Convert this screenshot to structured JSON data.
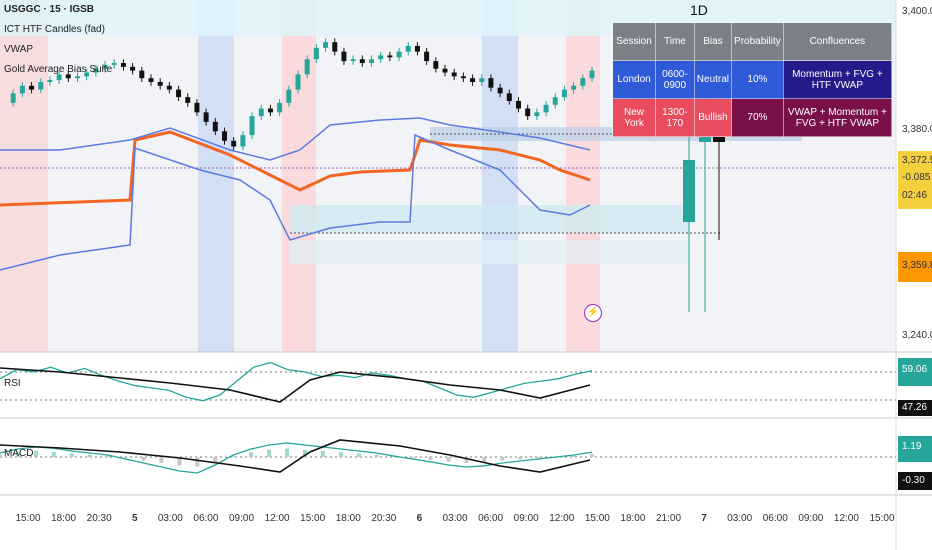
{
  "header": {
    "symbol": "USGGC · 15 · IGSB",
    "indicator_1": "ICT HTF Candles (fad)",
    "indicator_2": "VWAP",
    "indicator_3": "Gold Average Bias Suite",
    "htf_label": "1D"
  },
  "price_axis": {
    "ticks": [
      "3,400.00",
      "3,380.00",
      "3,240.00"
    ],
    "current_price": "3,372.55",
    "change": "-0.085",
    "countdown": "02:46",
    "level_tag": "3,359.80"
  },
  "rsi_pane": {
    "label": "RSI",
    "value_1": "59.06",
    "value_2": "47.26"
  },
  "macd_pane": {
    "label": "MACD",
    "value_1": "1.19",
    "value_2": "-0.30"
  },
  "time_axis": {
    "ticks": [
      "15:00",
      "18:00",
      "20:30",
      "5",
      "03:00",
      "06:00",
      "09:00",
      "12:00",
      "15:00",
      "18:00",
      "20:30",
      "6",
      "03:00",
      "06:00",
      "09:00",
      "12:00",
      "15:00",
      "18:00",
      "21:00",
      "7",
      "03:00",
      "06:00",
      "09:00",
      "12:00",
      "15:00"
    ]
  },
  "session_table": {
    "headers": [
      "Session",
      "Time",
      "Bias",
      "Probability",
      "Confluences"
    ],
    "rows": [
      {
        "session": "London",
        "time": "0600-0900",
        "bias": "Neutral",
        "probability": "10%",
        "confluences": "Momentum + FVG + HTF VWAP"
      },
      {
        "session": "New York",
        "time": "1300-170",
        "bias": "Bullish",
        "probability": "70%",
        "confluences": "VWAP + Momentum + FVG + HTF VWAP"
      }
    ]
  },
  "colors": {
    "up": "#26a69a",
    "down": "#111111",
    "ema": "#f26522",
    "vwap": "#5b7be0",
    "london_row": "#2f5bd8",
    "ny_row_session": "#e84c5e",
    "ny_row": "#7a1048",
    "header_row": "#7b8088",
    "confl_london": "#241b8a"
  },
  "chart_data": {
    "type": "candlestick",
    "series": [
      {
        "name": "price",
        "values": [
          3355,
          3360,
          3364,
          3362,
          3366,
          3367,
          3370,
          3368,
          3369,
          3371,
          3373,
          3375,
          3376,
          3374,
          3372,
          3368,
          3366,
          3364,
          3362,
          3358,
          3355,
          3350,
          3345,
          3340,
          3335,
          3332,
          3338,
          3348,
          3352,
          3350,
          3355,
          3362,
          3370,
          3378,
          3384,
          3387,
          3382,
          3377,
          3378,
          3376,
          3378,
          3380,
          3379,
          3382,
          3385,
          3382,
          3377,
          3373,
          3371,
          3369,
          3368,
          3366,
          3368,
          3363,
          3360,
          3356,
          3352,
          3348,
          3350,
          3354,
          3358,
          3362,
          3364,
          3368,
          3372
        ]
      },
      {
        "name": "RSI",
        "values": [
          52,
          60,
          58,
          62,
          57,
          61,
          55,
          50,
          46,
          44,
          42,
          36,
          33,
          38,
          50,
          62,
          66,
          60,
          58,
          54,
          55,
          53,
          57,
          55,
          52,
          50,
          44,
          38,
          36,
          40,
          44,
          48,
          50,
          52,
          56,
          59
        ]
      },
      {
        "name": "MACD",
        "values": [
          1,
          2,
          2.5,
          2.2,
          1.5,
          1,
          0.5,
          -0.5,
          -1.5,
          -2.5,
          -3.5,
          -4,
          -2,
          0.5,
          2,
          3,
          3.5,
          3,
          2.5,
          2,
          1.5,
          1,
          0.2,
          -0.5,
          -1.2,
          -2,
          -2.5,
          -2.2,
          -1.5,
          -1,
          -0.5,
          0,
          0.5,
          1.19
        ]
      }
    ],
    "ylim": [
      3230,
      3405
    ],
    "overlays": [
      "EMA",
      "VWAP",
      "Fair Value Gap zones",
      "session highlights"
    ]
  }
}
